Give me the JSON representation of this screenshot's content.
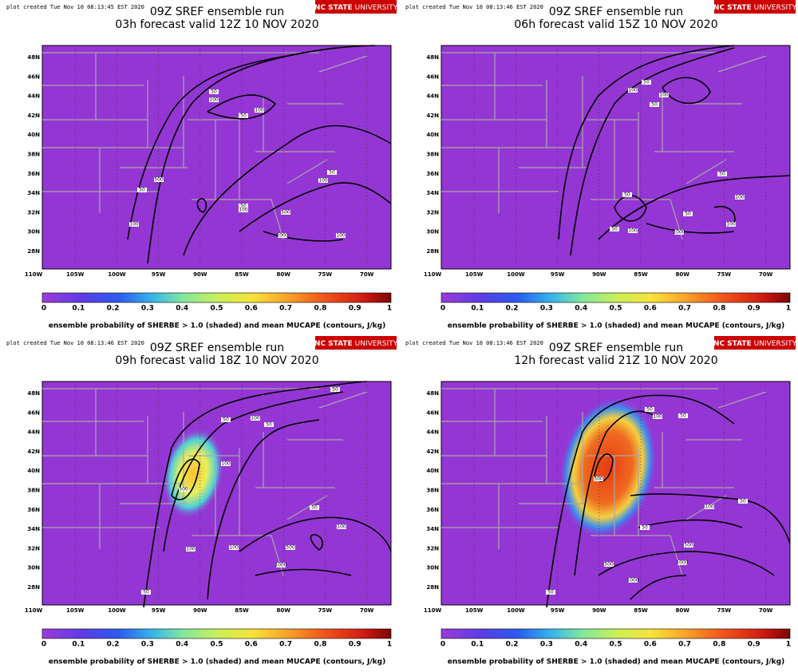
{
  "panels": [
    {
      "plot_created": "plot created Tue Nov 10 08:13:45 EST 2020",
      "title": "09Z SREF ensemble run",
      "subtitle": "03h forecast valid 12Z 10 NOV 2020",
      "contour_labels": [
        "50",
        "100",
        "100",
        "50",
        "50",
        "100",
        "500",
        "50",
        "50",
        "100",
        "500",
        "100",
        "1000",
        "100"
      ]
    },
    {
      "plot_created": "plot created Tue Nov 10 08:13:46 EST 2020",
      "title": "09Z SREF ensemble run",
      "subtitle": "06h forecast valid 15Z 10 NOV 2020",
      "contour_labels": [
        "50",
        "100",
        "100",
        "50",
        "50",
        "100",
        "50",
        "50",
        "100",
        "50",
        "100",
        "1000"
      ]
    },
    {
      "plot_created": "plot created Tue Nov 10 08:13:46 EST 2020",
      "title": "09Z SREF ensemble run",
      "subtitle": "09h forecast valid 18Z 10 NOV 2020",
      "contour_labels": [
        "50",
        "50",
        "100",
        "50",
        "100",
        "500",
        "50",
        "100",
        "100",
        "100",
        "500",
        "1000",
        "50"
      ]
    },
    {
      "plot_created": "plot created Tue Nov 10 08:13:46 EST 2020",
      "title": "09Z SREF ensemble run",
      "subtitle": "12h forecast valid 21Z 10 NOV 2020",
      "contour_labels": [
        "50",
        "100",
        "50",
        "500",
        "100",
        "50",
        "50",
        "500",
        "1000",
        "500",
        "1000",
        "50"
      ]
    }
  ],
  "logo": {
    "left": "NC STATE",
    "right": "UNIVERSITY"
  },
  "lat_labels": [
    "48N",
    "46N",
    "44N",
    "42N",
    "40N",
    "38N",
    "36N",
    "34N",
    "32N",
    "30N",
    "28N"
  ],
  "lon_labels": [
    "110W",
    "105W",
    "100W",
    "95W",
    "90W",
    "85W",
    "80W",
    "75W",
    "70W"
  ],
  "colorbar_ticks": [
    "0",
    "0.1",
    "0.2",
    "0.3",
    "0.4",
    "0.5",
    "0.6",
    "0.7",
    "0.8",
    "0.9",
    "1"
  ],
  "caption": "ensemble probability of SHERBE > 1.0 (shaded) and mean MUCAPE (contours, J/kg)"
}
